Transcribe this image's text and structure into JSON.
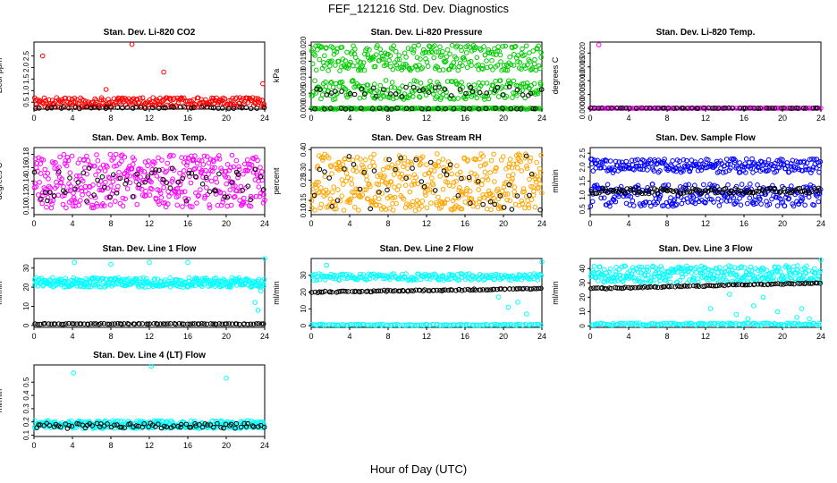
{
  "title": "FEF_121216  Std. Dev. Diagnostics",
  "xlabel": "Hour of Day (UTC)",
  "chart_data": [
    {
      "type": "scatter",
      "title": "Stan. Dev. Li-820 CO2",
      "ylabel": "Licor ppm",
      "xlim": [
        0,
        24
      ],
      "ylim": [
        0.2,
        3.1
      ],
      "yticks": [
        0.5,
        1.0,
        1.5,
        2.0,
        2.5
      ],
      "ytick_labels": [
        "0.5",
        "1.0",
        "1.5",
        "2.0",
        "2.5"
      ],
      "xticks": [
        0,
        4,
        8,
        12,
        16,
        20,
        24
      ],
      "color": "#ff0000",
      "series": [
        {
          "name": "lines",
          "color": "#ff0000",
          "points": [
            [
              0.9,
              2.5
            ],
            [
              7.5,
              1.05
            ],
            [
              8.9,
              0.55
            ],
            [
              10.2,
              3.0
            ],
            [
              13.5,
              1.8
            ],
            [
              14.2,
              0.6
            ],
            [
              17.6,
              0.5
            ],
            [
              23.8,
              1.3
            ]
          ]
        },
        {
          "name": "spread",
          "color": "#ff0000",
          "band": [
            0.28,
            0.7
          ],
          "count": 260
        },
        {
          "name": "reference",
          "color": "#000000",
          "band": [
            0.22,
            0.3
          ],
          "count": 48
        }
      ]
    },
    {
      "type": "scatter",
      "title": "Stan. Dev. Li-820 Pressure",
      "ylabel": "kPa",
      "xlim": [
        0,
        24
      ],
      "ylim": [
        0,
        0.021
      ],
      "yticks": [
        0,
        0.005,
        0.01,
        0.015,
        0.02
      ],
      "ytick_labels": [
        "0.000",
        "0.005",
        "0.010",
        "0.015",
        "0.020"
      ],
      "xticks": [
        0,
        4,
        8,
        12,
        16,
        20,
        24
      ],
      "color": "#00cc00",
      "series": [
        {
          "name": "upper",
          "color": "#00cc00",
          "band": [
            0.012,
            0.02
          ],
          "count": 280
        },
        {
          "name": "middle",
          "color": "#00cc00",
          "band": [
            0.003,
            0.009
          ],
          "count": 220
        },
        {
          "name": "base",
          "color": "#00cc00",
          "band": [
            0,
            0.0004
          ],
          "count": 150
        },
        {
          "name": "reference",
          "color": "#000000",
          "band": [
            0.004,
            0.007
          ],
          "count": 40
        },
        {
          "name": "reference-base",
          "color": "#000000",
          "band": [
            0,
            0.0003
          ],
          "count": 30
        }
      ]
    },
    {
      "type": "scatter",
      "title": "Stan. Dev. Li-820 Temp.",
      "ylabel": "degrees C",
      "xlim": [
        0,
        24
      ],
      "ylim": [
        -3e-05,
        0.0024
      ],
      "yticks": [
        0,
        0.0005,
        0.001,
        0.0015,
        0.002
      ],
      "ytick_labels": [
        "0.0000",
        "0.0005",
        "0.0010",
        "0.0015",
        "0.0020"
      ],
      "xticks": [
        0,
        4,
        8,
        12,
        16,
        20,
        24
      ],
      "color": "#ff00ff",
      "series": [
        {
          "name": "outlier",
          "color": "#ff00ff",
          "points": [
            [
              0.2,
              0
            ],
            [
              0.9,
              0.0023
            ]
          ]
        },
        {
          "name": "base",
          "color": "#ff00ff",
          "band": [
            0,
            1e-05
          ],
          "count": 120
        },
        {
          "name": "reference",
          "color": "#000000",
          "band": [
            0,
            1e-05
          ],
          "count": 60
        }
      ]
    },
    {
      "type": "scatter",
      "title": "Stan. Dev. Amb. Box Temp.",
      "ylabel": "degrees C",
      "xlim": [
        0,
        24
      ],
      "ylim": [
        0.09,
        0.19
      ],
      "yticks": [
        0.1,
        0.12,
        0.14,
        0.16,
        0.18
      ],
      "ytick_labels": [
        "0.10",
        "0.12",
        "0.14",
        "0.16",
        "0.18"
      ],
      "xticks": [
        0,
        4,
        8,
        12,
        16,
        20,
        24
      ],
      "color": "#ff00ff",
      "series": [
        {
          "name": "main",
          "color": "#ff00ff",
          "band": [
            0.1,
            0.18
          ],
          "count": 420
        },
        {
          "name": "reference",
          "color": "#000000",
          "band": [
            0.11,
            0.16
          ],
          "count": 60
        }
      ]
    },
    {
      "type": "scatter",
      "title": "Stan. Dev. Gas Stream RH",
      "ylabel": "percent",
      "xlim": [
        0,
        24
      ],
      "ylim": [
        0.08,
        0.41
      ],
      "yticks": [
        0.1,
        0.15,
        0.25,
        0.3,
        0.4
      ],
      "ytick_labels": [
        "0.10",
        "0.15",
        "0.25",
        "0.30",
        "0.40"
      ],
      "xticks": [
        0,
        4,
        8,
        12,
        16,
        20,
        24
      ],
      "color": "#ffa500",
      "series": [
        {
          "name": "main",
          "color": "#ffa500",
          "band": [
            0.1,
            0.38
          ],
          "count": 420
        },
        {
          "name": "reference",
          "color": "#000000",
          "band": [
            0.1,
            0.38
          ],
          "count": 45
        }
      ]
    },
    {
      "type": "scatter",
      "title": "Stan. Dev. Sample Flow",
      "ylabel": "ml/min",
      "xlim": [
        0,
        24
      ],
      "ylim": [
        0.3,
        2.7
      ],
      "yticks": [
        0.5,
        1.0,
        1.5,
        2.0,
        2.5
      ],
      "ytick_labels": [
        "0.5",
        "1.0",
        "1.5",
        "2.0",
        "2.5"
      ],
      "xticks": [
        0,
        4,
        8,
        12,
        16,
        20,
        24
      ],
      "color": "#0000ff",
      "series": [
        {
          "name": "upper",
          "color": "#0000ff",
          "band": [
            1.8,
            2.3
          ],
          "count": 260
        },
        {
          "name": "lower",
          "color": "#0000ff",
          "band": [
            0.6,
            1.4
          ],
          "count": 260
        },
        {
          "name": "reference",
          "color": "#000000",
          "band": [
            1.05,
            1.25
          ],
          "count": 120
        }
      ]
    },
    {
      "type": "scatter",
      "title": "Stan. Dev. Line 1 Flow",
      "ylabel": "ml/min",
      "xlim": [
        0,
        24
      ],
      "ylim": [
        -1,
        35
      ],
      "yticks": [
        0,
        10,
        20,
        30
      ],
      "ytick_labels": [
        "0",
        "10",
        "20",
        "30"
      ],
      "xticks": [
        0,
        4,
        8,
        12,
        16,
        20,
        24
      ],
      "color": "#00ffff",
      "series": [
        {
          "name": "main",
          "color": "#00ffff",
          "band": [
            20,
            25
          ],
          "count": 330
        },
        {
          "name": "outlier",
          "color": "#00ffff",
          "points": [
            [
              4.2,
              33
            ],
            [
              8,
              32
            ],
            [
              12,
              33
            ],
            [
              16,
              33
            ],
            [
              23,
              12
            ],
            [
              23.3,
              8
            ],
            [
              23.6,
              18
            ],
            [
              24,
              35
            ]
          ]
        },
        {
          "name": "reference",
          "color": "#000000",
          "band": [
            0.6,
            1.0
          ],
          "count": 90
        }
      ]
    },
    {
      "type": "scatter",
      "title": "Stan. Dev. Line 2 Flow",
      "ylabel": "ml/min",
      "xlim": [
        0,
        24
      ],
      "ylim": [
        -1,
        40
      ],
      "yticks": [
        0,
        10,
        20,
        30
      ],
      "ytick_labels": [
        "0",
        "10",
        "20",
        "30"
      ],
      "xticks": [
        0,
        4,
        8,
        12,
        16,
        20,
        24
      ],
      "color": "#00ffff",
      "series": [
        {
          "name": "main",
          "color": "#00ffff",
          "band": [
            27,
            31
          ],
          "count": 200
        },
        {
          "name": "outlier",
          "color": "#00ffff",
          "points": [
            [
              1.6,
              36
            ],
            [
              19.5,
              17
            ],
            [
              20.5,
              11
            ],
            [
              21.5,
              14
            ],
            [
              22.4,
              7
            ],
            [
              24,
              38
            ]
          ]
        },
        {
          "name": "base",
          "color": "#00ffff",
          "band": [
            0.2,
            0.9
          ],
          "count": 110
        },
        {
          "name": "reference",
          "color": "#000000",
          "trend": [
            [
              0,
              20
            ],
            [
              24,
              22
            ]
          ],
          "count": 100
        }
      ]
    },
    {
      "type": "scatter",
      "title": "Stan. Dev. Line 3 Flow",
      "ylabel": "ml/min",
      "xlim": [
        0,
        24
      ],
      "ylim": [
        -1,
        47
      ],
      "yticks": [
        0,
        10,
        20,
        30,
        40
      ],
      "ytick_labels": [
        "0",
        "10",
        "20",
        "30",
        "40"
      ],
      "xticks": [
        0,
        4,
        8,
        12,
        16,
        20,
        24
      ],
      "color": "#00ffff",
      "series": [
        {
          "name": "main",
          "color": "#00ffff",
          "band": [
            30,
            42
          ],
          "count": 320
        },
        {
          "name": "outlier",
          "color": "#00ffff",
          "points": [
            [
              12.5,
              12
            ],
            [
              14.5,
              22
            ],
            [
              15.2,
              8
            ],
            [
              16.4,
              5
            ],
            [
              17,
              14
            ],
            [
              18,
              20
            ],
            [
              19.5,
              10
            ],
            [
              21.5,
              6
            ],
            [
              22,
              12
            ],
            [
              22.8,
              5
            ],
            [
              24,
              46
            ]
          ]
        },
        {
          "name": "base",
          "color": "#00ffff",
          "band": [
            0.5,
            2
          ],
          "count": 130
        },
        {
          "name": "reference",
          "color": "#000000",
          "trend": [
            [
              0,
              26
            ],
            [
              24,
              30
            ]
          ],
          "count": 100
        }
      ]
    },
    {
      "type": "scatter",
      "title": "Stan. Dev. Line 4 (LT) Flow",
      "ylabel": "ml/min",
      "xlim": [
        0,
        24
      ],
      "ylim": [
        0.09,
        0.63
      ],
      "yticks": [
        0.1,
        0.2,
        0.3,
        0.4,
        0.5
      ],
      "ytick_labels": [
        "0.1",
        "0.2",
        "0.3",
        "0.4",
        "0.5"
      ],
      "xticks": [
        0,
        4,
        8,
        12,
        16,
        20,
        24
      ],
      "color": "#00ffff",
      "series": [
        {
          "name": "main",
          "color": "#00ffff",
          "band": [
            0.15,
            0.21
          ],
          "count": 320
        },
        {
          "name": "outlier",
          "color": "#00ffff",
          "points": [
            [
              4.1,
              0.57
            ],
            [
              12.2,
              0.62
            ],
            [
              20,
              0.53
            ]
          ]
        },
        {
          "name": "reference",
          "color": "#000000",
          "band": [
            0.15,
            0.19
          ],
          "count": 80
        }
      ]
    }
  ]
}
